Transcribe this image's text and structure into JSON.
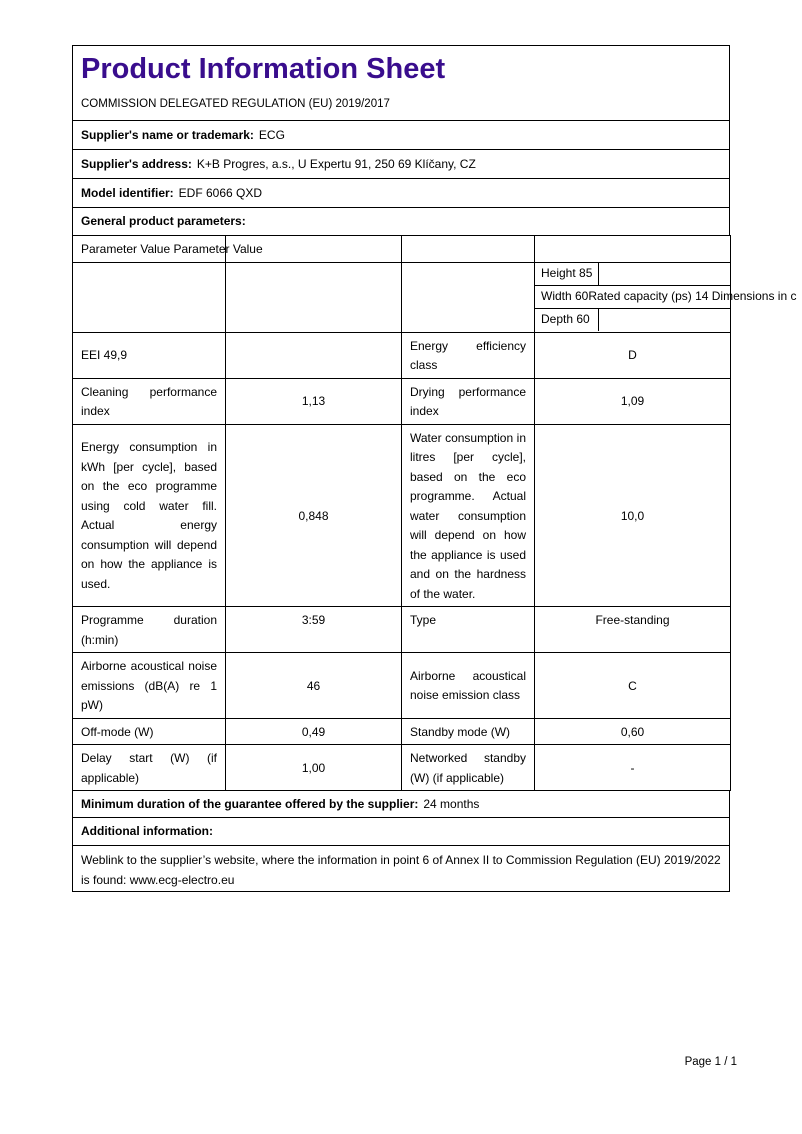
{
  "colors": {
    "title_accent": "#390D8D",
    "border": "#000000"
  },
  "doc": {
    "title": "Product Information Sheet",
    "regulation": "COMMISSION DELEGATED REGULATION (EU) 2019/2017",
    "footer": "Page 1 / 1"
  },
  "supplier_name": {
    "label": "Supplier's name or trademark:",
    "value": "ECG"
  },
  "supplier_address": {
    "label": "Supplier's address:",
    "value": "K+B Progres, a.s., U Expertu 91, 250 69 Klíčany, CZ"
  },
  "model": {
    "label": "Model identifier:",
    "value": "EDF 6066 QXD"
  },
  "general_heading": "General product parameters:",
  "ptable": {
    "header_text": "Parameter Value Parameter Value",
    "dimensions": {
      "height": "Height 85",
      "width_overflow": "Width 60Rated capacity (ps) 14 Dimensions in c",
      "depth": "Depth 60"
    },
    "rows": [
      {
        "c0": "EEI 49,9",
        "c1": "",
        "c2": "Energy efficiency class",
        "c3": "D"
      },
      {
        "c0": "Cleaning performance index",
        "c1": "1,13",
        "c2": "Drying performance index",
        "c3": "1,09"
      },
      {
        "c0": "Energy consumption in kWh [per cycle], based on the eco programme using cold water fill. Actual energy consumption will depend on how the appliance is used.",
        "c1": "0,848",
        "c2": "Water consumption in litres [per cycle], based on the eco programme. Actual water consumption will depend on how the appliance is used and on the hardness of the water.",
        "c3": "10,0"
      },
      {
        "c0": "Programme duration (h:min)",
        "c1": "3:59",
        "c2": "Type",
        "c3": "Free-standing"
      },
      {
        "c0": "Airborne acoustical noise emissions (dB(A) re 1 pW)",
        "c1": "46",
        "c2": "Airborne acoustical noise emission class",
        "c3": "C"
      },
      {
        "c0": "Off-mode (W)",
        "c1": "0,49",
        "c2": "Standby mode (W)",
        "c3": "0,60"
      },
      {
        "c0": "Delay start (W) (if applicable)",
        "c1": "1,00",
        "c2": "Networked standby (W) (if applicable)",
        "c3": "-"
      }
    ]
  },
  "guarantee": {
    "label": "Minimum duration of the guarantee offered by the supplier:",
    "value": "24 months"
  },
  "additional_heading": "Additional information:",
  "weblink": {
    "text": "Weblink to the supplier’s website, where the information in point 6 of Annex II to Commission Regulation (EU) 2019/2022 is found: www.ecg-electro.eu"
  }
}
